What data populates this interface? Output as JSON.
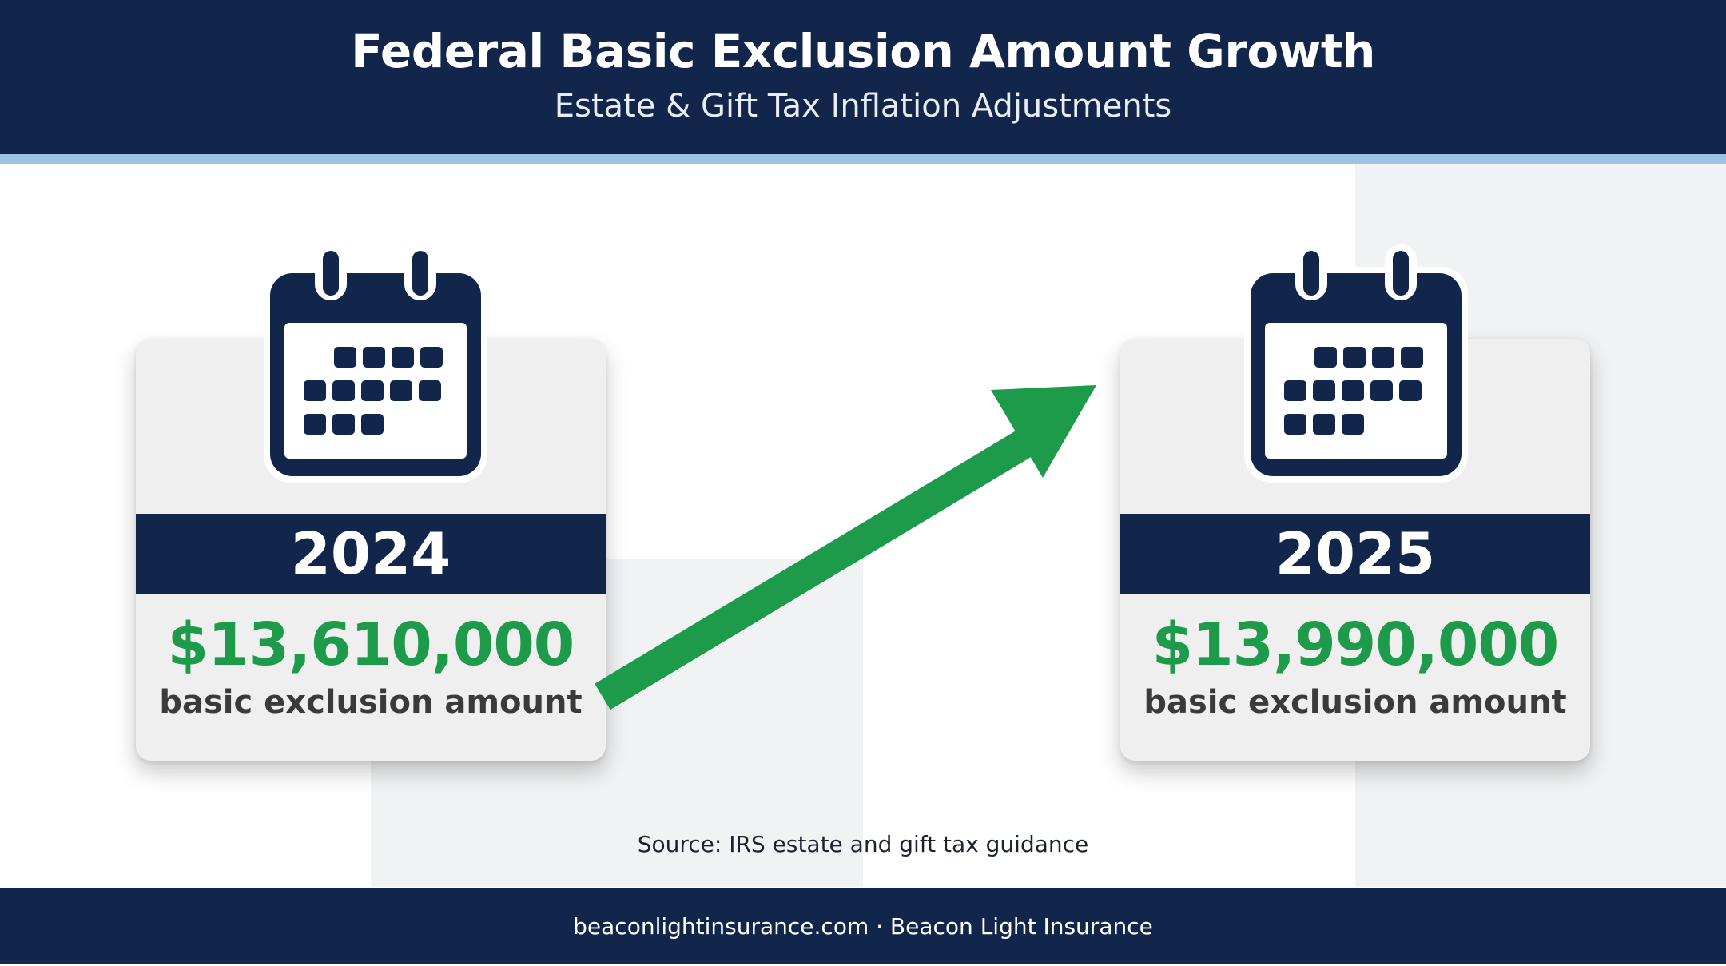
{
  "header": {
    "title": "Federal Basic Exclusion Amount Growth",
    "subtitle": "Estate & Gift Tax Inflation Adjustments"
  },
  "cards": [
    {
      "year": "2024",
      "amount": "$13,610,000",
      "label": "basic exclusion amount",
      "icon": "calendar-icon"
    },
    {
      "year": "2025",
      "amount": "$13,990,000",
      "label": "basic exclusion amount",
      "icon": "calendar-icon"
    }
  ],
  "arrow": {
    "icon": "growth-arrow-icon",
    "color": "#1e9a4b"
  },
  "source": "Source: IRS estate and gift tax guidance",
  "footer": {
    "text": "beaconlightinsurance.com · Beacon Light Insurance"
  },
  "colors": {
    "navy": "#12254a",
    "accent_blue": "#9cc3e2",
    "green": "#1e9a4b",
    "card_bg": "#efefef"
  }
}
